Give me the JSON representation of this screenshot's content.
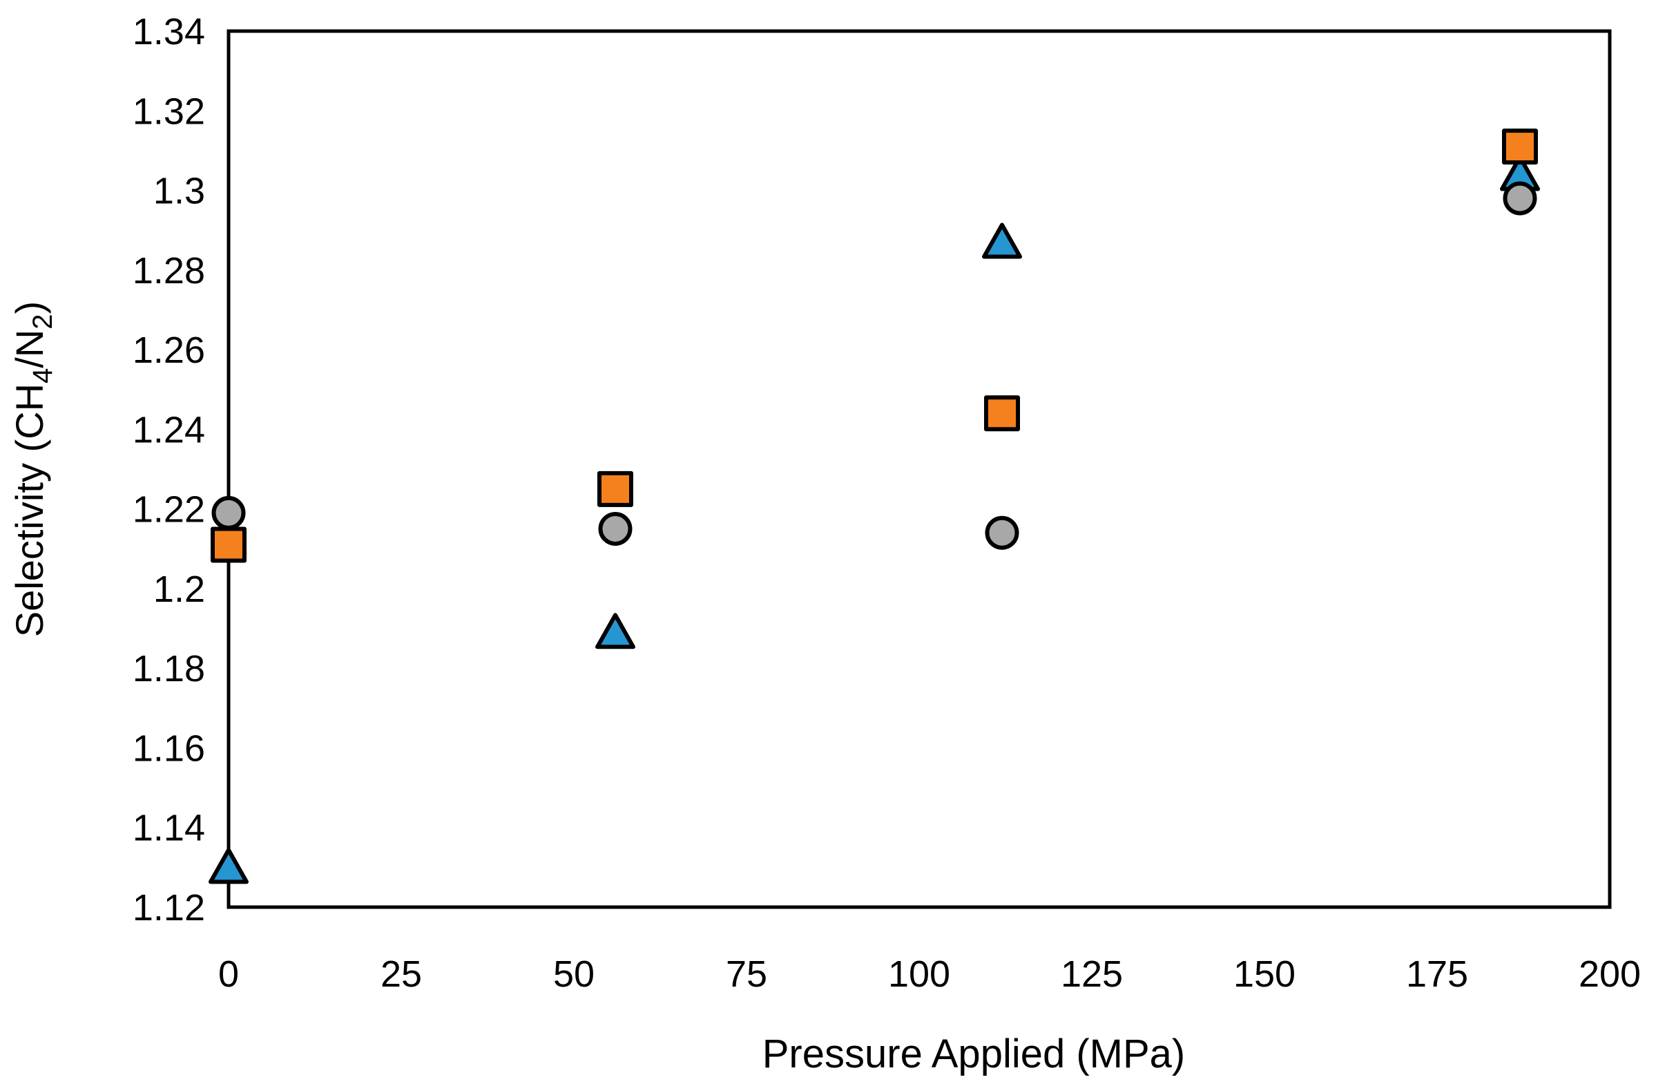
{
  "chart_data": {
    "type": "scatter",
    "title": "",
    "xlabel": "Pressure Applied (MPa)",
    "ylabel": "Selectivity (CH4/N2)",
    "ylabel_parts": [
      {
        "text": "Selectivity (CH",
        "sub": false
      },
      {
        "text": "4",
        "sub": true
      },
      {
        "text": "/N",
        "sub": false
      },
      {
        "text": "2",
        "sub": true
      },
      {
        "text": ")",
        "sub": false
      }
    ],
    "xlim": [
      0,
      200
    ],
    "ylim": [
      1.12,
      1.34
    ],
    "x_ticks": [
      "0",
      "25",
      "50",
      "75",
      "100",
      "125",
      "150",
      "175",
      "200"
    ],
    "y_ticks": [
      "1.12",
      "1.14",
      "1.16",
      "1.18",
      "1.2",
      "1.22",
      "1.24",
      "1.26",
      "1.28",
      "1.3",
      "1.32",
      "1.34"
    ],
    "grid": false,
    "legend": "none",
    "axis_color": "#000000",
    "text_color": "#000000",
    "series": [
      {
        "name": "triangle-series",
        "marker": "triangle",
        "fill": "#2696D3",
        "stroke": "#000000",
        "points": [
          [
            0,
            1.13
          ],
          [
            56,
            1.189
          ],
          [
            112,
            1.287
          ],
          [
            187,
            1.304
          ]
        ]
      },
      {
        "name": "square-series",
        "marker": "square",
        "fill": "#F5801E",
        "stroke": "#000000",
        "points": [
          [
            0,
            1.211
          ],
          [
            56,
            1.225
          ],
          [
            112,
            1.244
          ],
          [
            187,
            1.311
          ]
        ]
      },
      {
        "name": "circle-series",
        "marker": "circle",
        "fill": "#A8A8A8",
        "stroke": "#000000",
        "points": [
          [
            0,
            1.219
          ],
          [
            56,
            1.215
          ],
          [
            112,
            1.214
          ],
          [
            187,
            1.298
          ]
        ]
      }
    ]
  }
}
